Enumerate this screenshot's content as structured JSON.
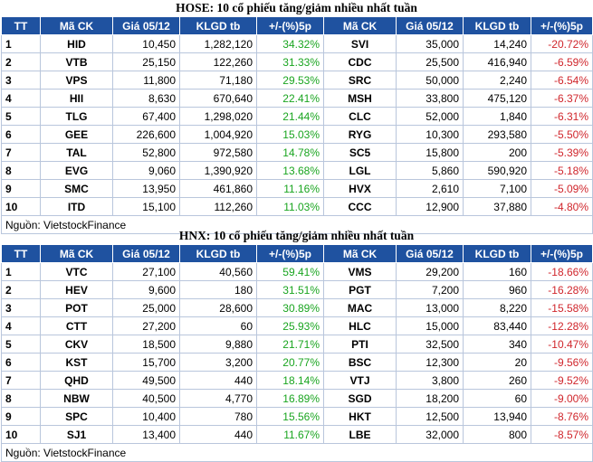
{
  "hose": {
    "title": "HOSE: 10 cổ phiếu tăng/giảm nhiều nhất tuần",
    "headers": [
      "TT",
      "Mã CK",
      "Giá 05/12",
      "KLGD tb",
      "+/-(%)5p",
      "Mã CK",
      "Giá 05/12",
      "KLGD tb",
      "+/-(%)5p"
    ],
    "rows": [
      {
        "tt": "1",
        "up_sym": "HID",
        "up_price": "10,450",
        "up_vol": "1,282,120",
        "up_pct": "34.32%",
        "dn_sym": "SVI",
        "dn_price": "35,000",
        "dn_vol": "14,240",
        "dn_pct": "-20.72%"
      },
      {
        "tt": "2",
        "up_sym": "VTB",
        "up_price": "25,150",
        "up_vol": "122,260",
        "up_pct": "31.33%",
        "dn_sym": "CDC",
        "dn_price": "25,500",
        "dn_vol": "416,940",
        "dn_pct": "-6.59%"
      },
      {
        "tt": "3",
        "up_sym": "VPS",
        "up_price": "11,800",
        "up_vol": "71,180",
        "up_pct": "29.53%",
        "dn_sym": "SRC",
        "dn_price": "50,000",
        "dn_vol": "2,240",
        "dn_pct": "-6.54%"
      },
      {
        "tt": "4",
        "up_sym": "HII",
        "up_price": "8,630",
        "up_vol": "670,640",
        "up_pct": "22.41%",
        "dn_sym": "MSH",
        "dn_price": "33,800",
        "dn_vol": "475,120",
        "dn_pct": "-6.37%"
      },
      {
        "tt": "5",
        "up_sym": "TLG",
        "up_price": "67,400",
        "up_vol": "1,298,020",
        "up_pct": "21.44%",
        "dn_sym": "CLC",
        "dn_price": "52,000",
        "dn_vol": "1,840",
        "dn_pct": "-6.31%"
      },
      {
        "tt": "6",
        "up_sym": "GEE",
        "up_price": "226,600",
        "up_vol": "1,004,920",
        "up_pct": "15.03%",
        "dn_sym": "RYG",
        "dn_price": "10,300",
        "dn_vol": "293,580",
        "dn_pct": "-5.50%"
      },
      {
        "tt": "7",
        "up_sym": "TAL",
        "up_price": "52,800",
        "up_vol": "972,580",
        "up_pct": "14.78%",
        "dn_sym": "SC5",
        "dn_price": "15,800",
        "dn_vol": "200",
        "dn_pct": "-5.39%"
      },
      {
        "tt": "8",
        "up_sym": "EVG",
        "up_price": "9,060",
        "up_vol": "1,390,920",
        "up_pct": "13.68%",
        "dn_sym": "LGL",
        "dn_price": "5,860",
        "dn_vol": "590,920",
        "dn_pct": "-5.18%"
      },
      {
        "tt": "9",
        "up_sym": "SMC",
        "up_price": "13,950",
        "up_vol": "461,860",
        "up_pct": "11.16%",
        "dn_sym": "HVX",
        "dn_price": "2,610",
        "dn_vol": "7,100",
        "dn_pct": "-5.09%"
      },
      {
        "tt": "10",
        "up_sym": "ITD",
        "up_price": "15,100",
        "up_vol": "112,260",
        "up_pct": "11.03%",
        "dn_sym": "CCC",
        "dn_price": "12,900",
        "dn_vol": "37,880",
        "dn_pct": "-4.80%"
      }
    ],
    "source": "Nguồn: VietstockFinance"
  },
  "hnx": {
    "title": "HNX: 10 cổ phiếu tăng/giảm nhiều nhất tuần",
    "headers": [
      "TT",
      "Mã CK",
      "Giá 05/12",
      "KLGD tb",
      "+/-(%)5p",
      "Mã CK",
      "Giá 05/12",
      "KLGD tb",
      "+/-(%)5p"
    ],
    "rows": [
      {
        "tt": "1",
        "up_sym": "VTC",
        "up_price": "27,100",
        "up_vol": "40,560",
        "up_pct": "59.41%",
        "dn_sym": "VMS",
        "dn_price": "29,200",
        "dn_vol": "160",
        "dn_pct": "-18.66%"
      },
      {
        "tt": "2",
        "up_sym": "HEV",
        "up_price": "9,600",
        "up_vol": "180",
        "up_pct": "31.51%",
        "dn_sym": "PGT",
        "dn_price": "7,200",
        "dn_vol": "960",
        "dn_pct": "-16.28%"
      },
      {
        "tt": "3",
        "up_sym": "POT",
        "up_price": "25,000",
        "up_vol": "28,600",
        "up_pct": "30.89%",
        "dn_sym": "MAC",
        "dn_price": "13,000",
        "dn_vol": "8,220",
        "dn_pct": "-15.58%"
      },
      {
        "tt": "4",
        "up_sym": "CTT",
        "up_price": "27,200",
        "up_vol": "60",
        "up_pct": "25.93%",
        "dn_sym": "HLC",
        "dn_price": "15,000",
        "dn_vol": "83,440",
        "dn_pct": "-12.28%"
      },
      {
        "tt": "5",
        "up_sym": "CKV",
        "up_price": "18,500",
        "up_vol": "9,880",
        "up_pct": "21.71%",
        "dn_sym": "PTI",
        "dn_price": "32,500",
        "dn_vol": "340",
        "dn_pct": "-10.47%"
      },
      {
        "tt": "6",
        "up_sym": "KST",
        "up_price": "15,700",
        "up_vol": "3,200",
        "up_pct": "20.77%",
        "dn_sym": "BSC",
        "dn_price": "12,300",
        "dn_vol": "20",
        "dn_pct": "-9.56%"
      },
      {
        "tt": "7",
        "up_sym": "QHD",
        "up_price": "49,500",
        "up_vol": "440",
        "up_pct": "18.14%",
        "dn_sym": "VTJ",
        "dn_price": "3,800",
        "dn_vol": "260",
        "dn_pct": "-9.52%"
      },
      {
        "tt": "8",
        "up_sym": "NBW",
        "up_price": "40,500",
        "up_vol": "4,770",
        "up_pct": "16.89%",
        "dn_sym": "SGD",
        "dn_price": "18,200",
        "dn_vol": "60",
        "dn_pct": "-9.00%"
      },
      {
        "tt": "9",
        "up_sym": "SPC",
        "up_price": "10,400",
        "up_vol": "780",
        "up_pct": "15.56%",
        "dn_sym": "HKT",
        "dn_price": "12,500",
        "dn_vol": "13,940",
        "dn_pct": "-8.76%"
      },
      {
        "tt": "10",
        "up_sym": "SJ1",
        "up_price": "13,400",
        "up_vol": "440",
        "up_pct": "11.67%",
        "dn_sym": "LBE",
        "dn_price": "32,000",
        "dn_vol": "800",
        "dn_pct": "-8.57%"
      }
    ],
    "source": "Nguồn: VietstockFinance"
  },
  "colors": {
    "header_bg": "#1f52a0",
    "gain": "#1aa520",
    "loss": "#d0262c"
  }
}
